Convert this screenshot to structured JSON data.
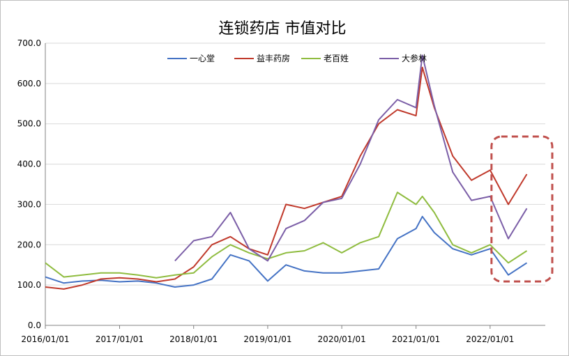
{
  "chart_data": {
    "type": "line",
    "title": "连锁药店 市值对比",
    "xlabel": "",
    "ylabel": "",
    "ylim": [
      0,
      700
    ],
    "yticks": [
      "0.0",
      "100.0",
      "200.0",
      "300.0",
      "400.0",
      "500.0",
      "600.0",
      "700.0"
    ],
    "xticks": [
      "2016/01/01",
      "2017/01/01",
      "2018/01/01",
      "2019/01/01",
      "2020/01/01",
      "2021/01/01",
      "2022/01/01"
    ],
    "x": [
      "2016-01",
      "2016-04",
      "2016-07",
      "2016-10",
      "2017-01",
      "2017-04",
      "2017-07",
      "2017-10",
      "2018-01",
      "2018-04",
      "2018-07",
      "2018-10",
      "2019-01",
      "2019-04",
      "2019-07",
      "2019-10",
      "2020-01",
      "2020-04",
      "2020-07",
      "2020-10",
      "2021-01",
      "2021-02",
      "2021-04",
      "2021-07",
      "2021-10",
      "2022-01",
      "2022-04",
      "2022-07"
    ],
    "grid": true,
    "legend_position": "top",
    "highlight_box": "dashed-red-rounded-rectangle-2022",
    "series": [
      {
        "name": "一心堂",
        "color": "#4472c4",
        "values": [
          120,
          105,
          110,
          112,
          108,
          110,
          105,
          95,
          100,
          115,
          175,
          160,
          110,
          150,
          135,
          130,
          130,
          135,
          140,
          215,
          240,
          270,
          230,
          190,
          175,
          190,
          125,
          155
        ]
      },
      {
        "name": "益丰药房",
        "color": "#c0392b",
        "values": [
          95,
          90,
          100,
          115,
          118,
          115,
          108,
          115,
          145,
          200,
          220,
          190,
          175,
          300,
          290,
          305,
          320,
          420,
          500,
          535,
          520,
          640,
          540,
          420,
          360,
          385,
          300,
          375
        ]
      },
      {
        "name": "老百姓",
        "color": "#8fbc3f",
        "values": [
          155,
          120,
          125,
          130,
          130,
          125,
          118,
          125,
          130,
          170,
          200,
          180,
          165,
          180,
          185,
          205,
          180,
          205,
          220,
          330,
          300,
          320,
          280,
          200,
          180,
          200,
          155,
          185
        ]
      },
      {
        "name": "大参林",
        "color": "#7b5ea7",
        "values": [
          null,
          null,
          null,
          null,
          null,
          null,
          null,
          160,
          210,
          220,
          280,
          190,
          160,
          240,
          260,
          305,
          315,
          400,
          510,
          560,
          540,
          670,
          545,
          380,
          310,
          320,
          215,
          290
        ]
      }
    ]
  }
}
